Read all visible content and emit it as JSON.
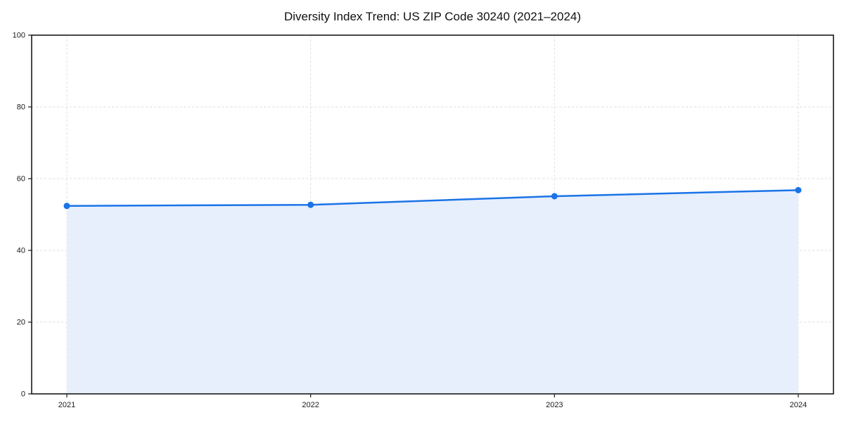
{
  "chart_data": {
    "type": "line",
    "title": "Diversity Index Trend: US ZIP Code 30240 (2021–2024)",
    "x": [
      "2021",
      "2022",
      "2023",
      "2024"
    ],
    "series": [
      {
        "name": "Diversity Index",
        "values": [
          52.4,
          52.7,
          55.1,
          56.8
        ]
      }
    ],
    "xlabel": "",
    "ylabel": "",
    "ylim": [
      0,
      100
    ],
    "yticks": [
      0,
      20,
      40,
      60,
      80,
      100
    ],
    "grid": true,
    "grid_style": "dashed",
    "legend": "none",
    "area_fill": true,
    "marker": "circle",
    "colors": {
      "line": "#1a73e8",
      "marker": "#1a73e8",
      "area": "#e7effd",
      "grid": "#e0e0e0",
      "spine": "#1a1a1a",
      "tick_label": "#1a1a1a",
      "title": "#111111",
      "background": "#ffffff"
    }
  }
}
